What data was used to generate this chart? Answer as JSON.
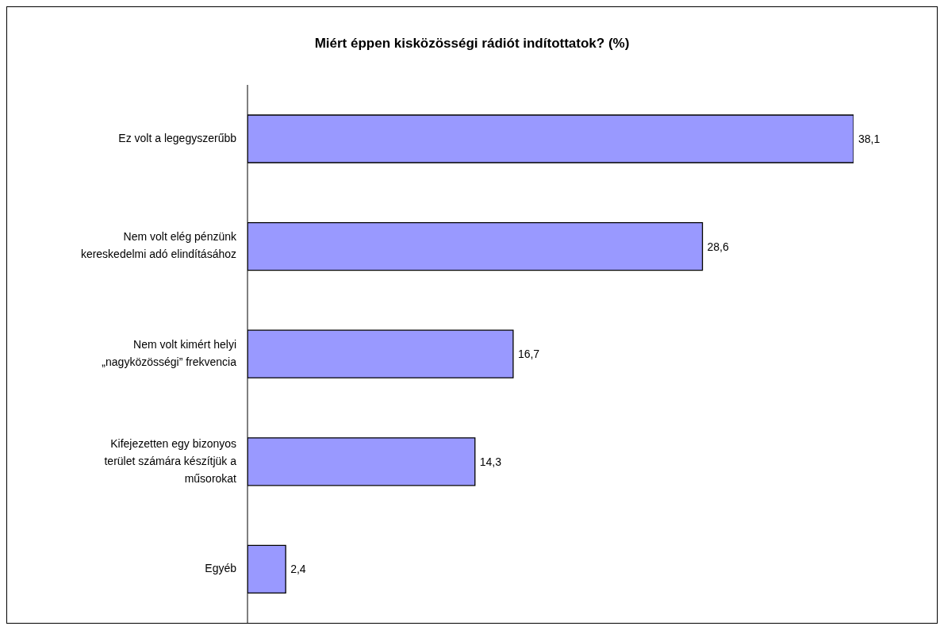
{
  "chart_data": {
    "type": "bar",
    "orientation": "horizontal",
    "title": "Miért éppen kisközösségi rádiót indítottatok? (%)",
    "categories": [
      "Ez volt a legegyszerűbb",
      "Nem volt elég pénzünk\nkereskedelmi adó elindításához",
      "Nem volt kimért helyi\n„nagyközösségi” frekvencia",
      "Kifejezetten egy bizonyos\nterület számára készítjük a\nműsorokat",
      "Egyéb"
    ],
    "values": [
      38.1,
      28.6,
      16.7,
      14.3,
      2.4
    ],
    "value_labels": [
      "38,1",
      "28,6",
      "16,7",
      "14,3",
      "2,4"
    ],
    "color": "#9999ff"
  }
}
